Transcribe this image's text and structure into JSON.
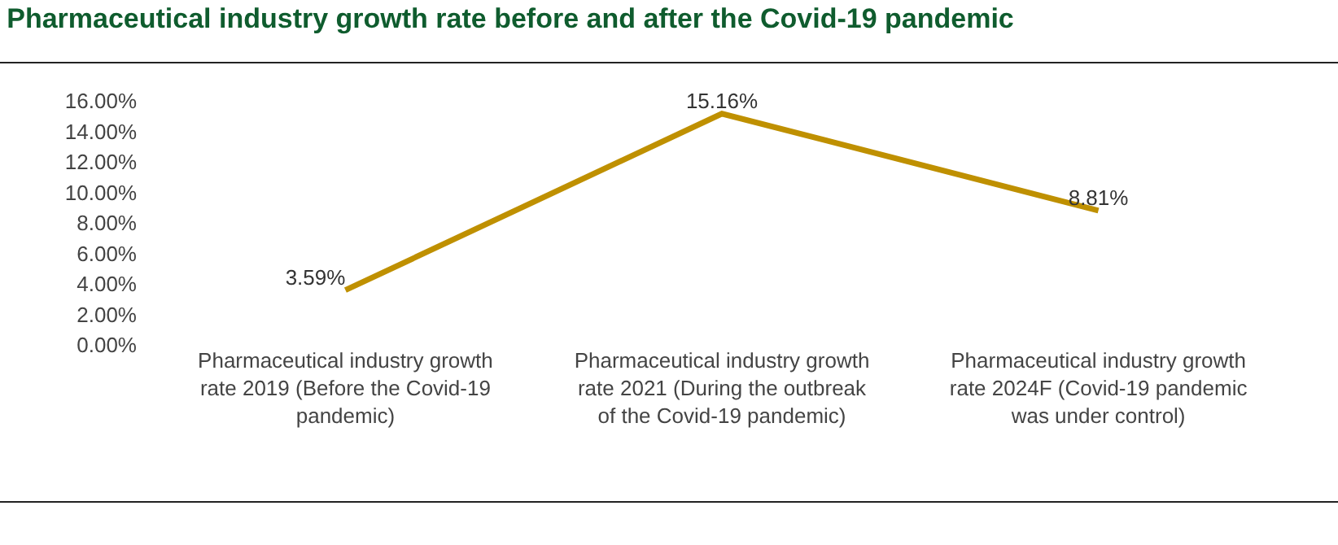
{
  "chart_data": {
    "type": "line",
    "title": "Pharmaceutical industry growth rate before and after the Covid-19 pandemic",
    "categories": [
      "Pharmaceutical industry growth rate 2019 (Before the Covid-19 pandemic)",
      "Pharmaceutical industry growth rate 2021 (During the outbreak of the Covid-19 pandemic)",
      "Pharmaceutical industry growth rate 2024F (Covid-19 pandemic was under control)"
    ],
    "series": [
      {
        "color": "#bf9000",
        "values": [
          3.59,
          15.16,
          8.81
        ],
        "value_labels": [
          "3.59%",
          "15.16%",
          "8.81%"
        ]
      }
    ],
    "ylim": [
      0,
      16
    ],
    "yticks": [
      {
        "value": 0,
        "label": "0.00%"
      },
      {
        "value": 2,
        "label": "2.00%"
      },
      {
        "value": 4,
        "label": "4.00%"
      },
      {
        "value": 6,
        "label": "6.00%"
      },
      {
        "value": 8,
        "label": "8.00%"
      },
      {
        "value": 10,
        "label": "10.00%"
      },
      {
        "value": 12,
        "label": "12.00%"
      },
      {
        "value": 14,
        "label": "14.00%"
      },
      {
        "value": 16,
        "label": "16.00%"
      }
    ],
    "grid": false,
    "marker": "none",
    "line_style": "solid"
  }
}
